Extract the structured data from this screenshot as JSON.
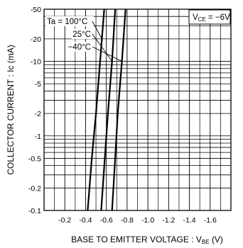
{
  "chart_data": {
    "type": "line",
    "title": "",
    "xlabel": "BASE TO EMITTER VOLTAGE : V",
    "xlabel_sub": "BE",
    "xlabel_unit": " (V)",
    "ylabel": "COLLECTOR CURRENT : Ic (mA)",
    "x_scale": "linear",
    "y_scale": "log",
    "xlim": [
      0,
      -1.8
    ],
    "ylim": [
      -0.1,
      -50
    ],
    "x_ticks": [
      -0.2,
      -0.4,
      -0.6,
      -0.8,
      -1.0,
      -1.2,
      -1.4,
      -1.6
    ],
    "x_tick_labels": [
      "-0.2",
      "-0.4",
      "-0.6",
      "-0.8",
      "-1.0",
      "-1.2",
      "-1.4",
      "-1.6"
    ],
    "y_ticks": [
      -0.1,
      -0.2,
      -0.5,
      -1,
      -2,
      -5,
      -10,
      -20,
      -50
    ],
    "y_tick_labels": [
      "-0.1",
      "-0.2",
      "-0.5",
      "-1",
      "-2",
      "-5",
      "-10",
      "-20",
      "-50"
    ],
    "grid": true,
    "condition": {
      "prefix": "V",
      "sub": "CE",
      "suffix": " = −6V"
    },
    "series": [
      {
        "name": "Ta = 100°C",
        "points": [
          [
            -0.42,
            -0.1
          ],
          [
            -0.46,
            -0.5
          ],
          [
            -0.5,
            -2
          ],
          [
            -0.54,
            -10
          ],
          [
            -0.58,
            -50
          ]
        ]
      },
      {
        "name": "25°C",
        "points": [
          [
            -0.55,
            -0.1
          ],
          [
            -0.585,
            -0.5
          ],
          [
            -0.615,
            -2
          ],
          [
            -0.655,
            -10
          ],
          [
            -0.685,
            -50
          ]
        ]
      },
      {
        "name": "−40°C",
        "points": [
          [
            -0.655,
            -0.1
          ],
          [
            -0.685,
            -0.5
          ],
          [
            -0.71,
            -2
          ],
          [
            -0.75,
            -10
          ],
          [
            -0.785,
            -50
          ]
        ]
      }
    ]
  }
}
